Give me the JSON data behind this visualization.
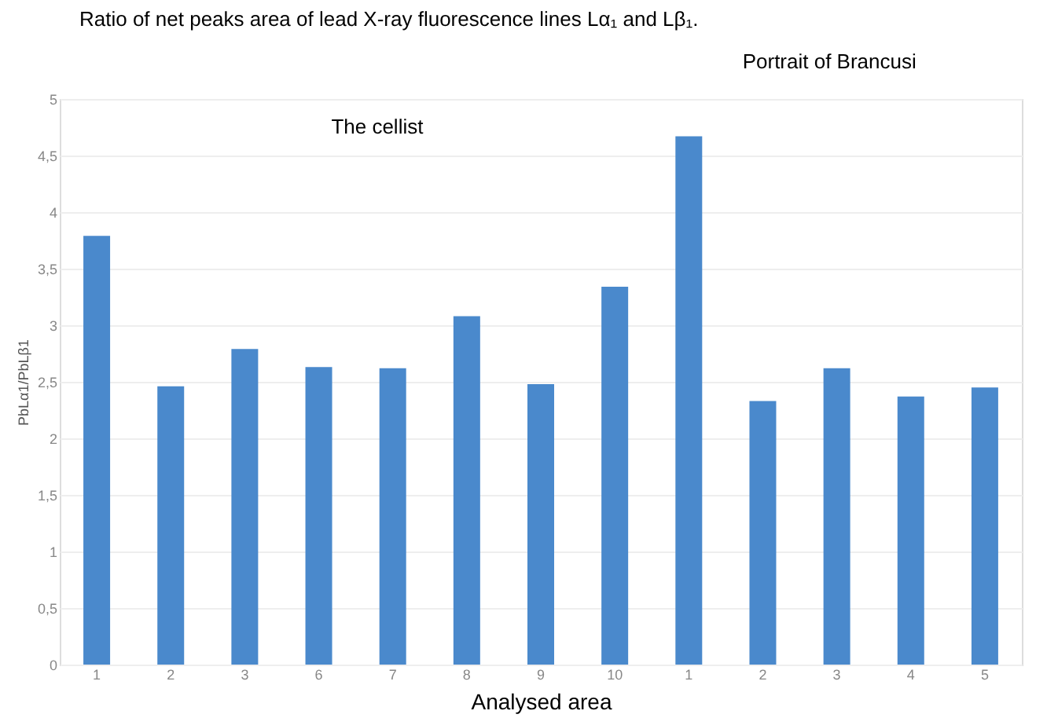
{
  "chart_data": {
    "type": "bar",
    "title": "Ratio of net peaks area of lead X-ray fluorescence lines Lα₁ and Lβ₁.",
    "xlabel": "Analysed area",
    "ylabel": "PbLα1/PbLβ1",
    "categories": [
      "1",
      "2",
      "3",
      "6",
      "7",
      "8",
      "9",
      "10",
      "1",
      "2",
      "3",
      "4",
      "5"
    ],
    "values": [
      3.79,
      2.46,
      2.79,
      2.63,
      2.62,
      3.08,
      2.48,
      3.34,
      4.67,
      2.33,
      2.62,
      2.37,
      2.45
    ],
    "color": "#4a89cc",
    "ylim": [
      0,
      5
    ],
    "yticks": [
      0,
      {
        "value": 0.5,
        "label": "0,5"
      },
      1,
      {
        "value": 1.5,
        "label": "1,5"
      },
      2,
      {
        "value": 2.5,
        "label": "2,5"
      },
      3,
      {
        "value": 3.5,
        "label": "3,5"
      },
      4,
      {
        "value": 4.5,
        "label": "4,5"
      },
      5
    ],
    "grid": "y",
    "annotations": [
      "The cellist",
      "Portrait of Brancusi"
    ]
  }
}
